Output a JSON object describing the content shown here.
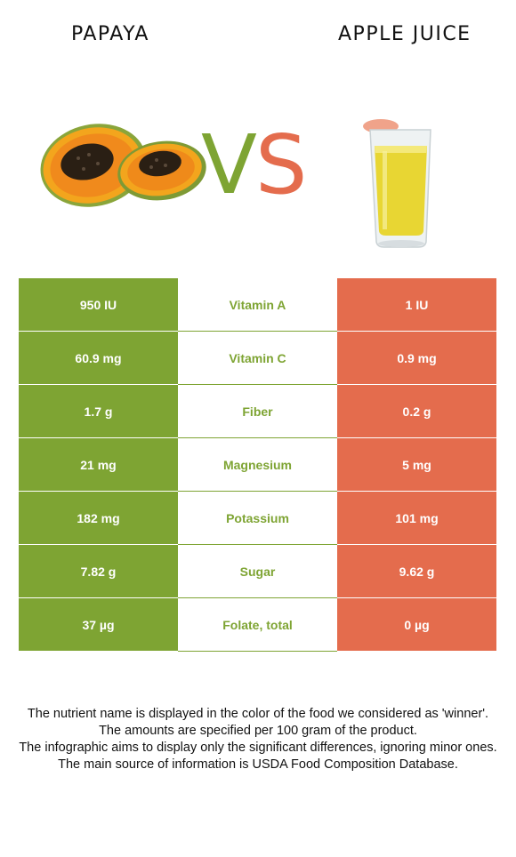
{
  "header": {
    "left_food": "PAPAYA",
    "right_food": "APPLE JUICE",
    "vs_v": "V",
    "vs_s": "S"
  },
  "colors": {
    "winner_left": "#7ea433",
    "winner_right": "#e46c4d"
  },
  "rows": [
    {
      "left": "950 IU",
      "nutrient": "Vitamin A",
      "right": "1 IU",
      "winner": "left"
    },
    {
      "left": "60.9 mg",
      "nutrient": "Vitamin C",
      "right": "0.9 mg",
      "winner": "left"
    },
    {
      "left": "1.7 g",
      "nutrient": "Fiber",
      "right": "0.2 g",
      "winner": "left"
    },
    {
      "left": "21 mg",
      "nutrient": "Magnesium",
      "right": "5 mg",
      "winner": "left"
    },
    {
      "left": "182 mg",
      "nutrient": "Potassium",
      "right": "101 mg",
      "winner": "left"
    },
    {
      "left": "7.82 g",
      "nutrient": "Sugar",
      "right": "9.62 g",
      "winner": "left"
    },
    {
      "left": "37 µg",
      "nutrient": "Folate, total",
      "right": "0 µg",
      "winner": "left"
    }
  ],
  "notes": [
    "The nutrient name is displayed in the color of the food we considered as 'winner'.",
    "The amounts are specified per 100 gram of the product.",
    "The infographic aims to display only the significant differences, ignoring minor ones.",
    "The main source of information is USDA Food Composition Database."
  ]
}
